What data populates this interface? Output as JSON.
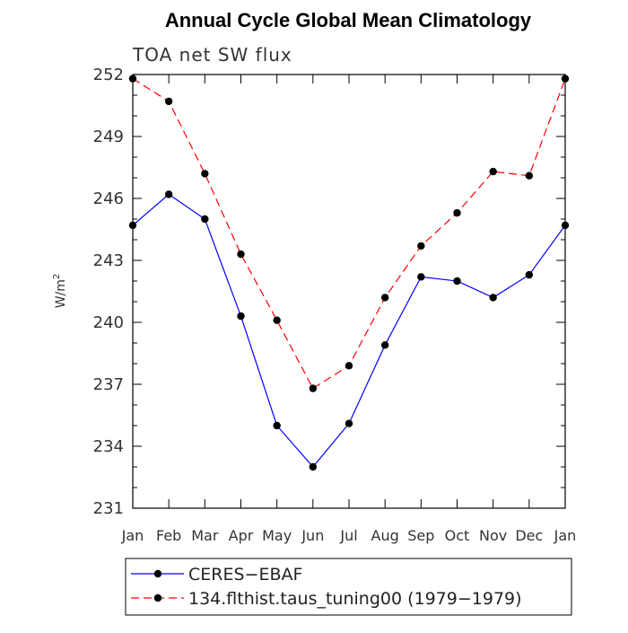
{
  "chart_data": {
    "type": "line",
    "title": "Annual Cycle Global Mean Climatology",
    "subtitle": "TOA net SW flux",
    "ylabel": "W/m",
    "ylabel_superscript": "2",
    "xlabel": "",
    "categories": [
      "Jan",
      "Feb",
      "Mar",
      "Apr",
      "May",
      "Jun",
      "Jul",
      "Aug",
      "Sep",
      "Oct",
      "Nov",
      "Dec",
      "Jan"
    ],
    "ylim": [
      231,
      252
    ],
    "yticks": [
      231,
      234,
      237,
      240,
      243,
      246,
      249,
      252
    ],
    "series": [
      {
        "name": "CERES−EBAF",
        "color": "#0000ff",
        "line_style": "solid",
        "values": [
          244.7,
          246.2,
          245.0,
          240.3,
          235.0,
          233.0,
          235.1,
          238.9,
          242.2,
          242.0,
          241.2,
          242.3,
          244.7
        ]
      },
      {
        "name": "134.flthist.taus_tuning00 (1979−1979)",
        "color": "#ff0000",
        "line_style": "dashed",
        "values": [
          251.8,
          250.7,
          247.2,
          243.3,
          240.1,
          236.8,
          237.9,
          241.2,
          243.7,
          245.3,
          247.3,
          247.1,
          251.8
        ]
      }
    ],
    "grid": false,
    "legend_position": "bottom"
  }
}
